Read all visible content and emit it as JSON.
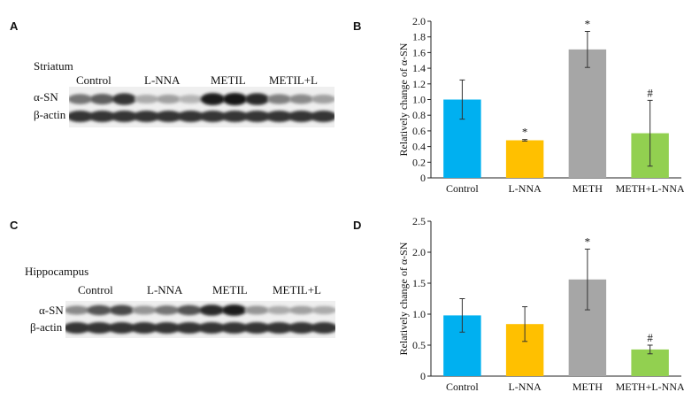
{
  "figure": {
    "panels": {
      "A": "A",
      "B": "B",
      "C": "C",
      "D": "D"
    }
  },
  "blots": [
    {
      "region": "Striatum",
      "lanes": [
        "Control",
        "L-NNA",
        "METIL",
        "METIL+L"
      ],
      "bands": [
        "α-SN",
        "β-actin"
      ],
      "alpha_sn_intensity": [
        0.55,
        0.65,
        0.85,
        0.3,
        0.35,
        0.25,
        0.95,
        1.0,
        0.9,
        0.5,
        0.45,
        0.35
      ],
      "actin_intensity": [
        0.85,
        0.85,
        0.85,
        0.85,
        0.85,
        0.85,
        0.85,
        0.85,
        0.85,
        0.85,
        0.85,
        0.85
      ]
    },
    {
      "region": "Hippocampus",
      "lanes": [
        "Control",
        "L-NNA",
        "METIL",
        "METIL+L"
      ],
      "bands": [
        "α-SN",
        "β-actin"
      ],
      "alpha_sn_intensity": [
        0.45,
        0.7,
        0.75,
        0.4,
        0.55,
        0.7,
        0.9,
        0.95,
        0.4,
        0.3,
        0.35,
        0.3
      ],
      "actin_intensity": [
        0.85,
        0.85,
        0.85,
        0.85,
        0.85,
        0.85,
        0.85,
        0.85,
        0.85,
        0.85,
        0.85,
        0.85
      ]
    }
  ],
  "chart_data": [
    {
      "type": "bar",
      "categories": [
        "Control",
        "L-NNA",
        "METH",
        "METH+L-NNA"
      ],
      "values": [
        1.0,
        0.48,
        1.64,
        0.57
      ],
      "errors": [
        0.25,
        0.01,
        0.23,
        0.42
      ],
      "annotations": [
        "",
        "*",
        "*",
        "#"
      ],
      "colors": [
        "#00b0f0",
        "#ffc000",
        "#a6a6a6",
        "#92d050"
      ],
      "ylabel": "Relatively change of α-SN",
      "xlabel": "",
      "ylim": [
        0,
        2.0
      ],
      "yticks": [
        "0",
        "0.2",
        "0.4",
        "0.6",
        "0.8",
        "1.0",
        "1.2",
        "1.4",
        "1.6",
        "1.8",
        "2.0"
      ],
      "grid": false,
      "legend": "none"
    },
    {
      "type": "bar",
      "categories": [
        "Control",
        "L-NNA",
        "METH",
        "METH+L-NNA"
      ],
      "values": [
        0.98,
        0.84,
        1.56,
        0.43
      ],
      "errors": [
        0.27,
        0.28,
        0.49,
        0.07
      ],
      "annotations": [
        "",
        "",
        "*",
        "#"
      ],
      "colors": [
        "#00b0f0",
        "#ffc000",
        "#a6a6a6",
        "#92d050"
      ],
      "ylabel": "Relatively change of α-SN",
      "xlabel": "",
      "ylim": [
        0,
        2.5
      ],
      "yticks": [
        "0",
        "0.5",
        "1.0",
        "1.5",
        "2.0",
        "2.5"
      ],
      "grid": false,
      "legend": "none"
    }
  ]
}
